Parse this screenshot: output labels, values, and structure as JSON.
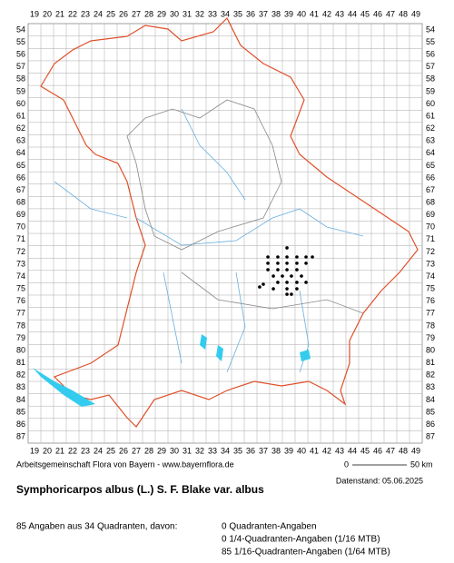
{
  "map": {
    "grid_columns": [
      19,
      20,
      21,
      22,
      23,
      24,
      25,
      26,
      27,
      28,
      29,
      30,
      31,
      32,
      33,
      34,
      35,
      36,
      37,
      38,
      39,
      40,
      41,
      42,
      43,
      44,
      45,
      46,
      47,
      48,
      49
    ],
    "grid_rows": [
      54,
      55,
      56,
      57,
      58,
      59,
      60,
      61,
      62,
      63,
      64,
      65,
      66,
      67,
      68,
      69,
      70,
      71,
      72,
      73,
      74,
      75,
      76,
      77,
      78,
      79,
      80,
      81,
      82,
      83,
      84,
      85,
      86,
      87
    ],
    "points": {
      "x": [
        38.86,
        37.36,
        38.14,
        38.86,
        39.64,
        40.36,
        40.86,
        37.36,
        38.14,
        38.86,
        39.64,
        40.36,
        37.36,
        38.14,
        38.86,
        39.64,
        37.79,
        38.5,
        39.21,
        40.0,
        38.14,
        38.86,
        39.64,
        40.36,
        37.0,
        36.71,
        37.79,
        38.86,
        39.64,
        38.86,
        39.21
      ],
      "y": [
        71.67,
        72.41,
        72.41,
        72.41,
        72.41,
        72.41,
        72.41,
        72.92,
        72.92,
        72.92,
        72.92,
        72.92,
        73.44,
        73.44,
        73.44,
        73.44,
        73.96,
        73.96,
        73.96,
        73.96,
        74.47,
        74.47,
        74.47,
        74.47,
        74.62,
        74.84,
        74.99,
        74.99,
        74.99,
        75.43,
        75.43
      ]
    },
    "footer": {
      "credit": "Arbeitsgemeinschaft Flora von Bayern - www.bayernflora.de",
      "scale_start": "0",
      "scale_end": "50 km",
      "date": "Datenstand: 05.06.2025"
    },
    "title": "Symphoricarpos albus (L.) S. F. Blake var. albus",
    "summary": "85 Angaben aus 34 Quadranten, davon:",
    "breakdown": [
      "0 Quadranten-Angaben",
      "0 1/4-Quadranten-Angaben (1/16 MTB)",
      "85 1/16-Quadranten-Angaben (1/64 MTB)"
    ]
  }
}
